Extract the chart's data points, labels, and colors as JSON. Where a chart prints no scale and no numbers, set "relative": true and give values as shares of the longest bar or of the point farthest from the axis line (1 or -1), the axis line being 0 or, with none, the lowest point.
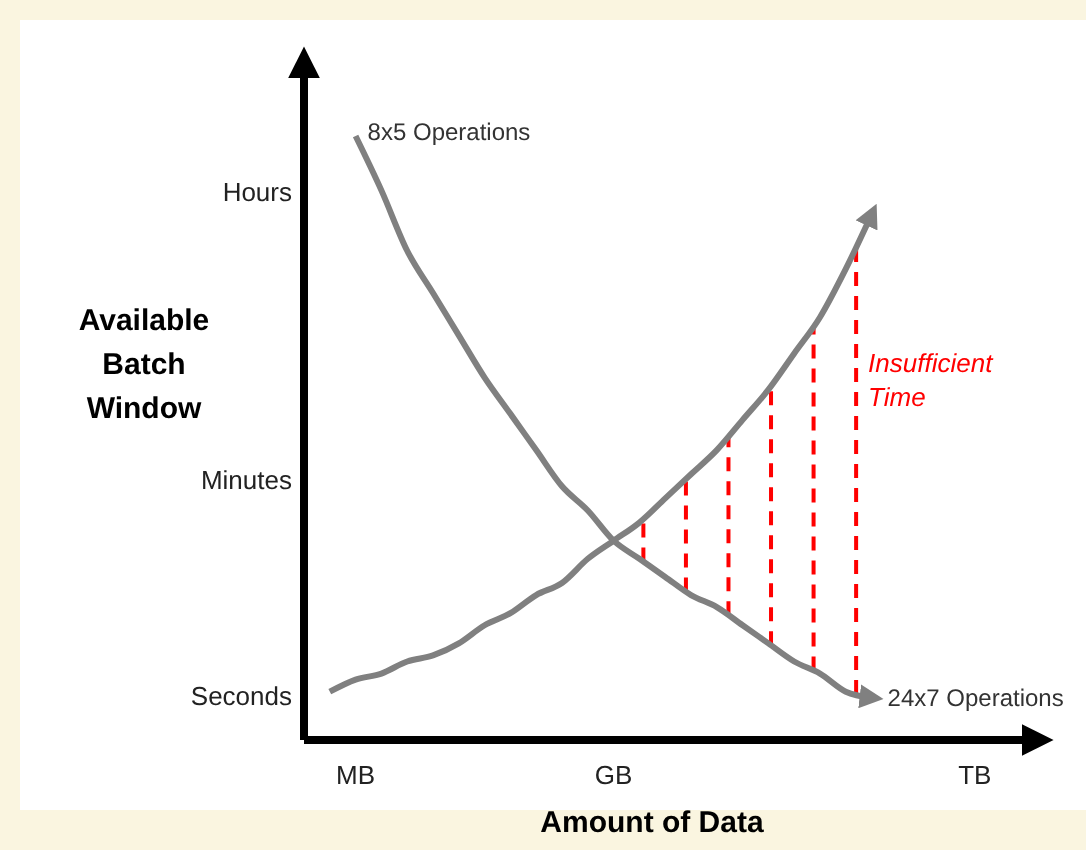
{
  "chart_data": {
    "type": "line",
    "relative": true,
    "xlabel": "Amount of Data",
    "ylabel": "Available Batch Window",
    "marker": "none",
    "categories": [
      null,
      null,
      "MB",
      null,
      null,
      null,
      null,
      null,
      null,
      null,
      null,
      null,
      "GB",
      null,
      null,
      null,
      null,
      null,
      null,
      null,
      null,
      null,
      null,
      null,
      null,
      null,
      "TB",
      null,
      null
    ],
    "series": [
      {
        "color": "#808080",
        "values": [
          null,
          null,
          1.0,
          0.91,
          0.81,
          0.74,
          0.67,
          0.6,
          0.54,
          0.48,
          0.42,
          0.38,
          0.33,
          0.3,
          0.27,
          0.24,
          0.22,
          0.19,
          0.16,
          0.13,
          0.11,
          0.08,
          0.07,
          null,
          null,
          null,
          null,
          null,
          null
        ]
      },
      {
        "color": "#808080",
        "values": [
          null,
          0.08,
          0.1,
          0.11,
          0.13,
          0.14,
          0.16,
          0.19,
          0.21,
          0.24,
          0.26,
          0.3,
          0.33,
          0.36,
          0.4,
          0.44,
          0.48,
          0.53,
          0.58,
          0.64,
          0.7,
          0.78,
          0.87,
          null,
          null,
          null,
          null,
          null,
          null
        ]
      }
    ],
    "annotations": [
      "8x5 Operations",
      "24x7 Operations",
      "Insufficient Time",
      "Hours",
      "Minutes",
      "Seconds"
    ]
  }
}
